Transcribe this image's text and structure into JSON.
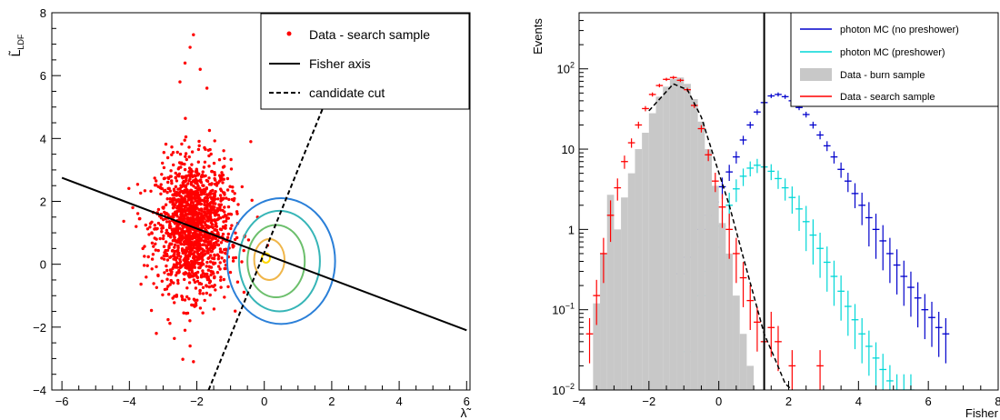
{
  "chart_data": [
    {
      "type": "scatter",
      "title": "",
      "xlabel": "λ̃",
      "ylabel": "L̃",
      "ylabel_sub": "LDF",
      "xlim": [
        -6.3,
        6.1
      ],
      "ylim": [
        -4,
        8
      ],
      "x_ticks": [
        -6,
        -4,
        -2,
        0,
        2,
        4,
        6
      ],
      "y_ticks": [
        -4,
        -2,
        0,
        2,
        4,
        6,
        8
      ],
      "grid": false,
      "legend_placement": "top-right",
      "legend": [
        {
          "label": "Data - search sample",
          "style": "marker",
          "color": "#ff0000"
        },
        {
          "label": "Fisher axis",
          "style": "solid",
          "color": "#000000"
        },
        {
          "label": "candidate cut",
          "style": "dashed",
          "color": "#000000"
        }
      ],
      "scatter_cluster": {
        "name": "Data - search sample",
        "color": "#ff0000",
        "center": [
          -2.1,
          1.2
        ],
        "x_spread": 0.55,
        "y_spread": 1.05,
        "points": 1500,
        "sample_points": [
          {
            "x": -2.1,
            "y": 7.3
          },
          {
            "x": -2.2,
            "y": 6.9
          },
          {
            "x": -2.35,
            "y": 6.4
          },
          {
            "x": -1.9,
            "y": 6.2
          },
          {
            "x": -2.5,
            "y": 5.8
          },
          {
            "x": -1.7,
            "y": 5.6
          },
          {
            "x": -3.9,
            "y": 1.8
          },
          {
            "x": -3.8,
            "y": 1.2
          },
          {
            "x": -3.6,
            "y": 0.5
          },
          {
            "x": -2.2,
            "y": -2.6
          },
          {
            "x": -2.1,
            "y": -3.1
          },
          {
            "x": -3.2,
            "y": -2.2
          },
          {
            "x": -0.2,
            "y": 1.5
          },
          {
            "x": 0.1,
            "y": 0.6
          },
          {
            "x": -0.4,
            "y": 3.9
          }
        ]
      },
      "lines": [
        {
          "name": "Fisher axis",
          "style": "solid",
          "color": "#000000",
          "points": [
            [
              -6,
              2.75
            ],
            [
              6,
              -2.1
            ]
          ]
        },
        {
          "name": "candidate cut",
          "style": "dashed",
          "color": "#000000",
          "points": [
            [
              -1.65,
              -4
            ],
            [
              1.75,
              5.0
            ]
          ]
        }
      ],
      "contours": [
        {
          "level": 1,
          "color": "#2a7fd8",
          "center": [
            0.5,
            0.1
          ],
          "rx": 1.6,
          "ry": 2.0
        },
        {
          "level": 2,
          "color": "#36b5b7",
          "center": [
            0.45,
            0.1
          ],
          "rx": 1.2,
          "ry": 1.6
        },
        {
          "level": 3,
          "color": "#6cbf6c",
          "center": [
            0.35,
            0.1
          ],
          "rx": 0.85,
          "ry": 1.15
        },
        {
          "level": 4,
          "color": "#f0b64a",
          "center": [
            0.15,
            0.15
          ],
          "rx": 0.45,
          "ry": 0.65
        },
        {
          "level": 5,
          "color": "#ffd700",
          "center": [
            0.05,
            0.2
          ],
          "rx": 0.12,
          "ry": 0.15
        }
      ]
    },
    {
      "type": "line",
      "title": "",
      "xlabel": "Fisher",
      "ylabel": "Events",
      "xlim": [
        -4,
        8
      ],
      "ylim": [
        0.01,
        500
      ],
      "log_y": true,
      "x_ticks": [
        -4,
        -2,
        0,
        2,
        4,
        6,
        8
      ],
      "y_ticks": [
        {
          "value": 0.01,
          "base": "10",
          "exp": "−2"
        },
        {
          "value": 0.1,
          "base": "10",
          "exp": "−1"
        },
        {
          "value": 1,
          "base": "1",
          "exp": ""
        },
        {
          "value": 10,
          "base": "10",
          "exp": ""
        },
        {
          "value": 100,
          "base": "10",
          "exp": "2"
        }
      ],
      "grid": false,
      "legend_placement": "top-right",
      "cut_line": 1.3,
      "series": [
        {
          "name": "photon MC (no preshower)",
          "color": "#0000cc",
          "style": "errorbar",
          "x": [
            -1.3,
            -1.1,
            -0.9,
            -0.7,
            -0.5,
            -0.3,
            -0.1,
            0.1,
            0.3,
            0.5,
            0.7,
            0.9,
            1.1,
            1.3,
            1.5,
            1.7,
            1.9,
            2.1,
            2.3,
            2.5,
            2.7,
            2.9,
            3.1,
            3.3,
            3.5,
            3.7,
            3.9,
            4.1,
            4.3,
            4.5,
            4.7,
            4.9,
            5.1,
            5.3,
            5.5,
            5.7,
            5.9,
            6.1,
            6.3,
            6.5
          ],
          "y": [
            0.15,
            0.28,
            0.45,
            0.7,
            1.0,
            1.5,
            2.2,
            3.4,
            5.2,
            8.0,
            13,
            20,
            29,
            38,
            46,
            48,
            45,
            40,
            33,
            27,
            20,
            15,
            11,
            8.0,
            5.6,
            4.0,
            2.8,
            2.0,
            1.4,
            1.0,
            0.72,
            0.5,
            0.36,
            0.26,
            0.19,
            0.14,
            0.1,
            0.08,
            0.06,
            0.05
          ]
        },
        {
          "name": "photon MC (preshower)",
          "color": "#00d7d7",
          "style": "errorbar",
          "x": [
            -1.1,
            -0.9,
            -0.7,
            -0.5,
            -0.3,
            -0.1,
            0.1,
            0.3,
            0.5,
            0.7,
            0.9,
            1.1,
            1.3,
            1.5,
            1.7,
            1.9,
            2.1,
            2.3,
            2.5,
            2.7,
            2.9,
            3.1,
            3.3,
            3.5,
            3.7,
            3.9,
            4.1,
            4.3,
            4.5,
            4.7,
            4.9,
            5.1,
            5.3,
            5.5
          ],
          "y": [
            0.01,
            0.03,
            0.07,
            0.15,
            0.3,
            0.6,
            1.1,
            2.0,
            3.2,
            4.6,
            5.8,
            6.3,
            6.0,
            5.3,
            4.3,
            3.3,
            2.5,
            1.8,
            1.25,
            0.85,
            0.58,
            0.39,
            0.26,
            0.17,
            0.11,
            0.075,
            0.05,
            0.035,
            0.025,
            0.018,
            0.013,
            0.01,
            0.01,
            0.01
          ]
        },
        {
          "name": "Data - burn sample",
          "color": "#c8c8c8",
          "style": "fill",
          "x": [
            -3.5,
            -3.3,
            -3.1,
            -2.9,
            -2.7,
            -2.5,
            -2.3,
            -2.1,
            -1.9,
            -1.7,
            -1.5,
            -1.3,
            -1.1,
            -0.9,
            -0.7,
            -0.5,
            -0.3,
            -0.1,
            0.1,
            0.3,
            0.5,
            0.7,
            0.9
          ],
          "y": [
            0.12,
            0.5,
            2.7,
            1.0,
            2.5,
            5,
            10,
            16,
            28,
            45,
            60,
            75,
            78,
            65,
            42,
            22,
            10,
            3.5,
            1.2,
            0.5,
            0.15,
            0.05,
            0.02
          ]
        },
        {
          "name": "Data - search sample",
          "color": "#ff0000",
          "style": "errorbar",
          "x": [
            -3.7,
            -3.5,
            -3.3,
            -3.1,
            -2.9,
            -2.7,
            -2.5,
            -2.3,
            -2.1,
            -1.9,
            -1.7,
            -1.5,
            -1.3,
            -1.1,
            -0.9,
            -0.7,
            -0.5,
            -0.3,
            -0.1,
            0.1,
            0.3,
            0.5,
            0.7,
            0.9,
            1.1,
            1.3,
            1.5,
            1.7,
            2.1,
            2.9
          ],
          "y": [
            0.05,
            0.15,
            0.5,
            1.5,
            3.3,
            7.0,
            12,
            20,
            32,
            48,
            62,
            74,
            78,
            72,
            55,
            35,
            18,
            8.5,
            4.0,
            1.9,
            1.0,
            0.5,
            0.25,
            0.13,
            0.07,
            0.04,
            0.06,
            0.04,
            0.02,
            0.02
          ]
        },
        {
          "name": "fit",
          "color": "#000000",
          "style": "dashed",
          "x": [
            -2.0,
            -1.3,
            -0.9,
            -0.5,
            -0.1,
            0.3,
            0.7,
            1.0,
            1.3,
            1.6,
            1.9,
            2.1
          ],
          "y": [
            30,
            65,
            55,
            25,
            7,
            2.0,
            0.45,
            0.15,
            0.05,
            0.025,
            0.012,
            0.01
          ]
        }
      ]
    }
  ]
}
